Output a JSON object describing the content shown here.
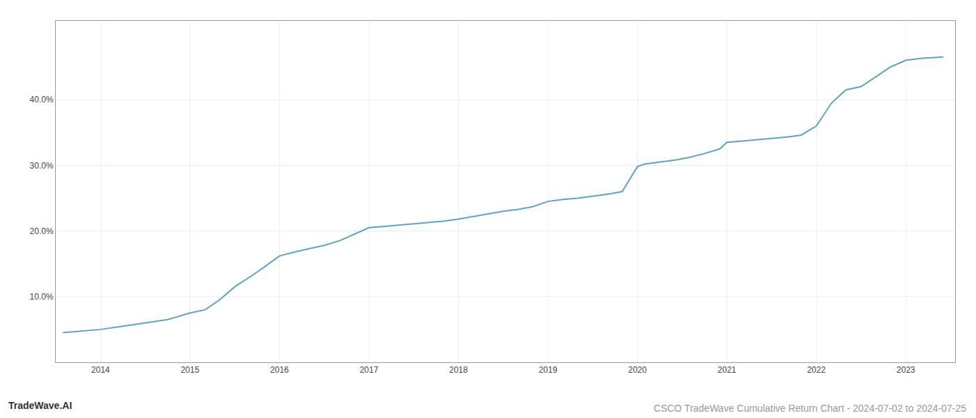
{
  "chart_data": {
    "type": "line",
    "title": "CSCO TradeWave Cumulative Return Chart - 2024-07-02 to 2024-07-25",
    "annotations": [
      "TradeWave.AI"
    ],
    "color": "#5ba3c9",
    "grid": true,
    "x": [
      2013.58,
      2013.75,
      2014.0,
      2014.25,
      2014.5,
      2014.75,
      2015.0,
      2015.08,
      2015.17,
      2015.33,
      2015.5,
      2015.67,
      2015.83,
      2016.0,
      2016.08,
      2016.17,
      2016.33,
      2016.5,
      2016.67,
      2016.83,
      2017.0,
      2017.17,
      2017.33,
      2017.5,
      2017.67,
      2017.83,
      2018.0,
      2018.17,
      2018.33,
      2018.5,
      2018.67,
      2018.83,
      2019.0,
      2019.17,
      2019.33,
      2019.5,
      2019.67,
      2019.83,
      2020.0,
      2020.08,
      2020.25,
      2020.42,
      2020.58,
      2020.75,
      2020.92,
      2021.0,
      2021.17,
      2021.33,
      2021.5,
      2021.67,
      2021.83,
      2022.0,
      2022.17,
      2022.33,
      2022.5,
      2022.67,
      2022.83,
      2023.0,
      2023.17,
      2023.42
    ],
    "values": [
      4.5,
      4.7,
      5.0,
      5.5,
      6.0,
      6.5,
      7.5,
      7.7,
      8.0,
      9.5,
      11.5,
      13.0,
      14.5,
      16.2,
      16.5,
      16.8,
      17.3,
      17.8,
      18.5,
      19.5,
      20.5,
      20.7,
      20.9,
      21.1,
      21.3,
      21.5,
      21.8,
      22.2,
      22.6,
      23.0,
      23.3,
      23.7,
      24.5,
      24.8,
      25.0,
      25.3,
      25.6,
      26.0,
      29.8,
      30.2,
      30.5,
      30.8,
      31.2,
      31.8,
      32.5,
      33.5,
      33.7,
      33.9,
      34.1,
      34.3,
      34.6,
      36.0,
      39.5,
      41.5,
      42.0,
      43.5,
      45.0,
      46.0,
      46.3,
      46.5
    ],
    "xlim": [
      2013.5,
      2023.55
    ],
    "ylim": [
      0,
      52
    ],
    "xticks": [
      2014,
      2015,
      2016,
      2017,
      2018,
      2019,
      2020,
      2021,
      2022,
      2023
    ],
    "yticks": [
      {
        "value": 10.0,
        "label": "10.0%"
      },
      {
        "value": 20.0,
        "label": "20.0%"
      },
      {
        "value": 30.0,
        "label": "30.0%"
      },
      {
        "value": 40.0,
        "label": "40.0%"
      }
    ]
  }
}
